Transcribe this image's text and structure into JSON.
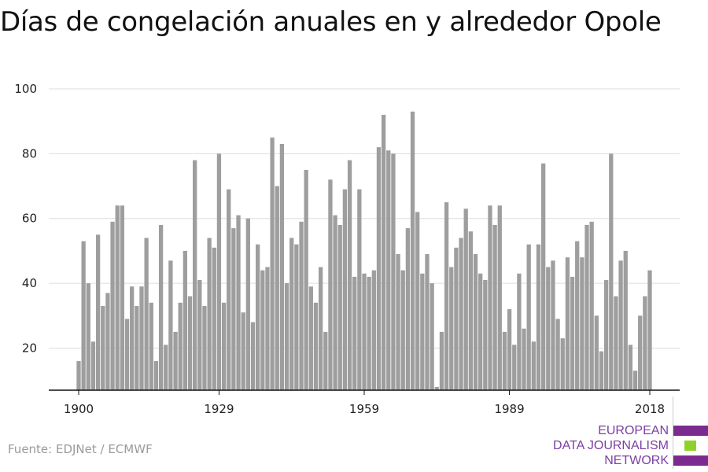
{
  "title": "Días de congelación anuales en y alrededor Opole",
  "source": "Fuente: EDJNet / ECMWF",
  "logo": {
    "lines": [
      "EUROPEAN",
      "DATA JOURNALISM",
      "NETWORK"
    ],
    "colors": [
      "#7b2b8f",
      "#8fd12c",
      "#7b2b8f"
    ]
  },
  "chart_data": {
    "type": "bar",
    "title": "Días de congelación anuales en y alrededor Opole",
    "xlabel": "",
    "ylabel": "",
    "x": [
      1900,
      1901,
      1902,
      1903,
      1904,
      1905,
      1906,
      1907,
      1908,
      1909,
      1910,
      1911,
      1912,
      1913,
      1914,
      1915,
      1916,
      1917,
      1918,
      1919,
      1920,
      1921,
      1922,
      1923,
      1924,
      1925,
      1926,
      1927,
      1928,
      1929,
      1930,
      1931,
      1932,
      1933,
      1934,
      1935,
      1936,
      1937,
      1938,
      1939,
      1940,
      1941,
      1942,
      1943,
      1944,
      1945,
      1946,
      1947,
      1948,
      1949,
      1950,
      1951,
      1952,
      1953,
      1954,
      1955,
      1956,
      1957,
      1958,
      1959,
      1960,
      1961,
      1962,
      1963,
      1964,
      1965,
      1966,
      1967,
      1968,
      1969,
      1970,
      1971,
      1972,
      1973,
      1974,
      1975,
      1976,
      1977,
      1978,
      1979,
      1980,
      1981,
      1982,
      1983,
      1984,
      1985,
      1986,
      1987,
      1988,
      1989,
      1990,
      1991,
      1992,
      1993,
      1994,
      1995,
      1996,
      1997,
      1998,
      1999,
      2000,
      2001,
      2002,
      2003,
      2004,
      2005,
      2006,
      2007,
      2008,
      2009,
      2010,
      2011,
      2012,
      2013,
      2014,
      2015,
      2016,
      2017,
      2018
    ],
    "values": [
      16,
      53,
      40,
      22,
      55,
      33,
      37,
      59,
      64,
      64,
      29,
      39,
      33,
      39,
      54,
      34,
      16,
      58,
      21,
      47,
      25,
      34,
      50,
      36,
      78,
      41,
      33,
      54,
      51,
      80,
      34,
      69,
      57,
      61,
      31,
      60,
      28,
      52,
      44,
      45,
      85,
      70,
      83,
      40,
      54,
      52,
      59,
      75,
      39,
      34,
      45,
      25,
      72,
      61,
      58,
      69,
      78,
      42,
      69,
      43,
      42,
      44,
      82,
      92,
      81,
      80,
      49,
      44,
      57,
      93,
      62,
      43,
      49,
      40,
      8,
      25,
      65,
      45,
      51,
      54,
      63,
      56,
      49,
      43,
      41,
      64,
      58,
      64,
      25,
      32,
      21,
      43,
      26,
      52,
      22,
      52,
      77,
      45,
      47,
      29,
      23,
      48,
      42,
      53,
      48,
      58,
      59,
      30,
      19,
      41,
      80,
      36,
      47,
      50,
      21,
      13,
      30,
      36,
      44
    ],
    "xticks": [
      1900,
      1929,
      1959,
      1989,
      2018
    ],
    "yticks": [
      20,
      40,
      60,
      80,
      100
    ],
    "ylim": [
      7,
      100
    ],
    "grid": true,
    "color": "#9e9e9e"
  }
}
